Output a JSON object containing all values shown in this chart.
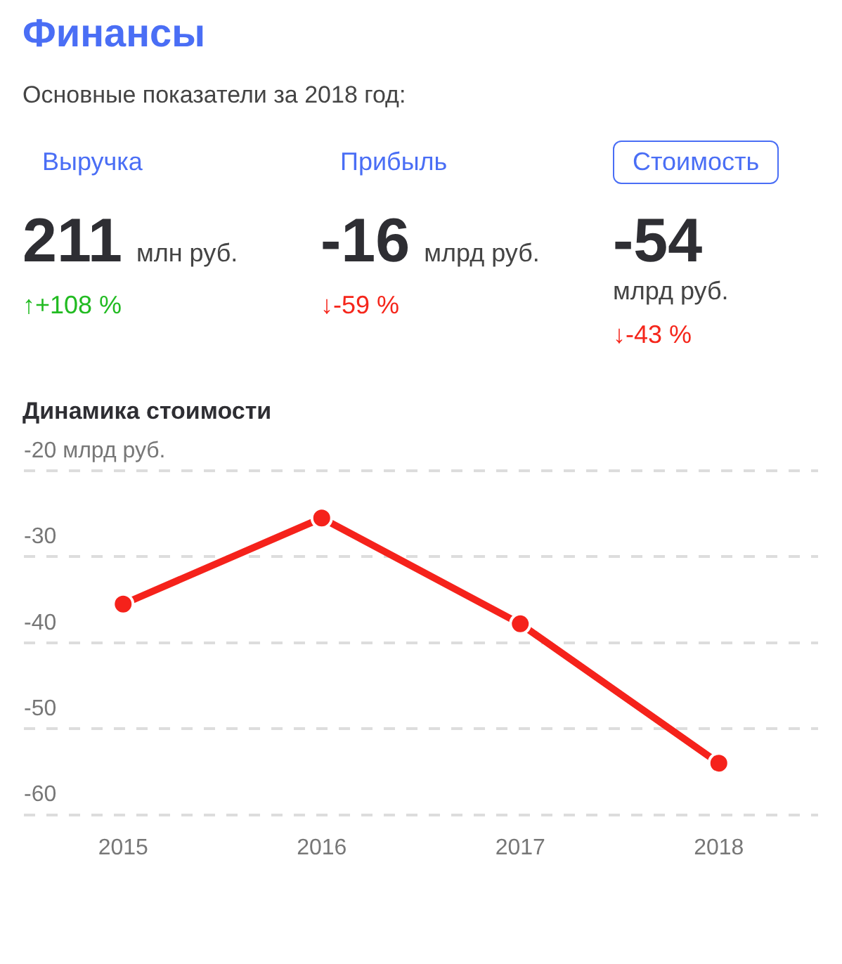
{
  "chart_data": [
    {
      "type": "other",
      "title": "Финансы",
      "subtitle": "Основные показатели за 2018 год:",
      "annotations": [
        "Выручка",
        "211",
        "млн руб.",
        "↑+108 %",
        "Прибыль",
        "-16",
        "млрд руб.",
        "↓-59 %",
        "Стоимость",
        "-54",
        "млрд руб.",
        "↓-43 %"
      ]
    },
    {
      "type": "line",
      "title": "Динамика стоимости",
      "categories": [
        "2015",
        "2016",
        "2017",
        "2018"
      ],
      "series": [
        {
          "color": "#f5221b",
          "values": [
            -35.5,
            -25.5,
            -37.8,
            -54
          ]
        }
      ],
      "ylim": [
        -60,
        -20
      ],
      "yticks": [
        {
          "value": -20,
          "label": "-20 млрд руб."
        },
        -30,
        -40,
        -50,
        -60
      ],
      "grid": "y",
      "marker": "circle",
      "line_style": "solid",
      "legend": false
    }
  ]
}
